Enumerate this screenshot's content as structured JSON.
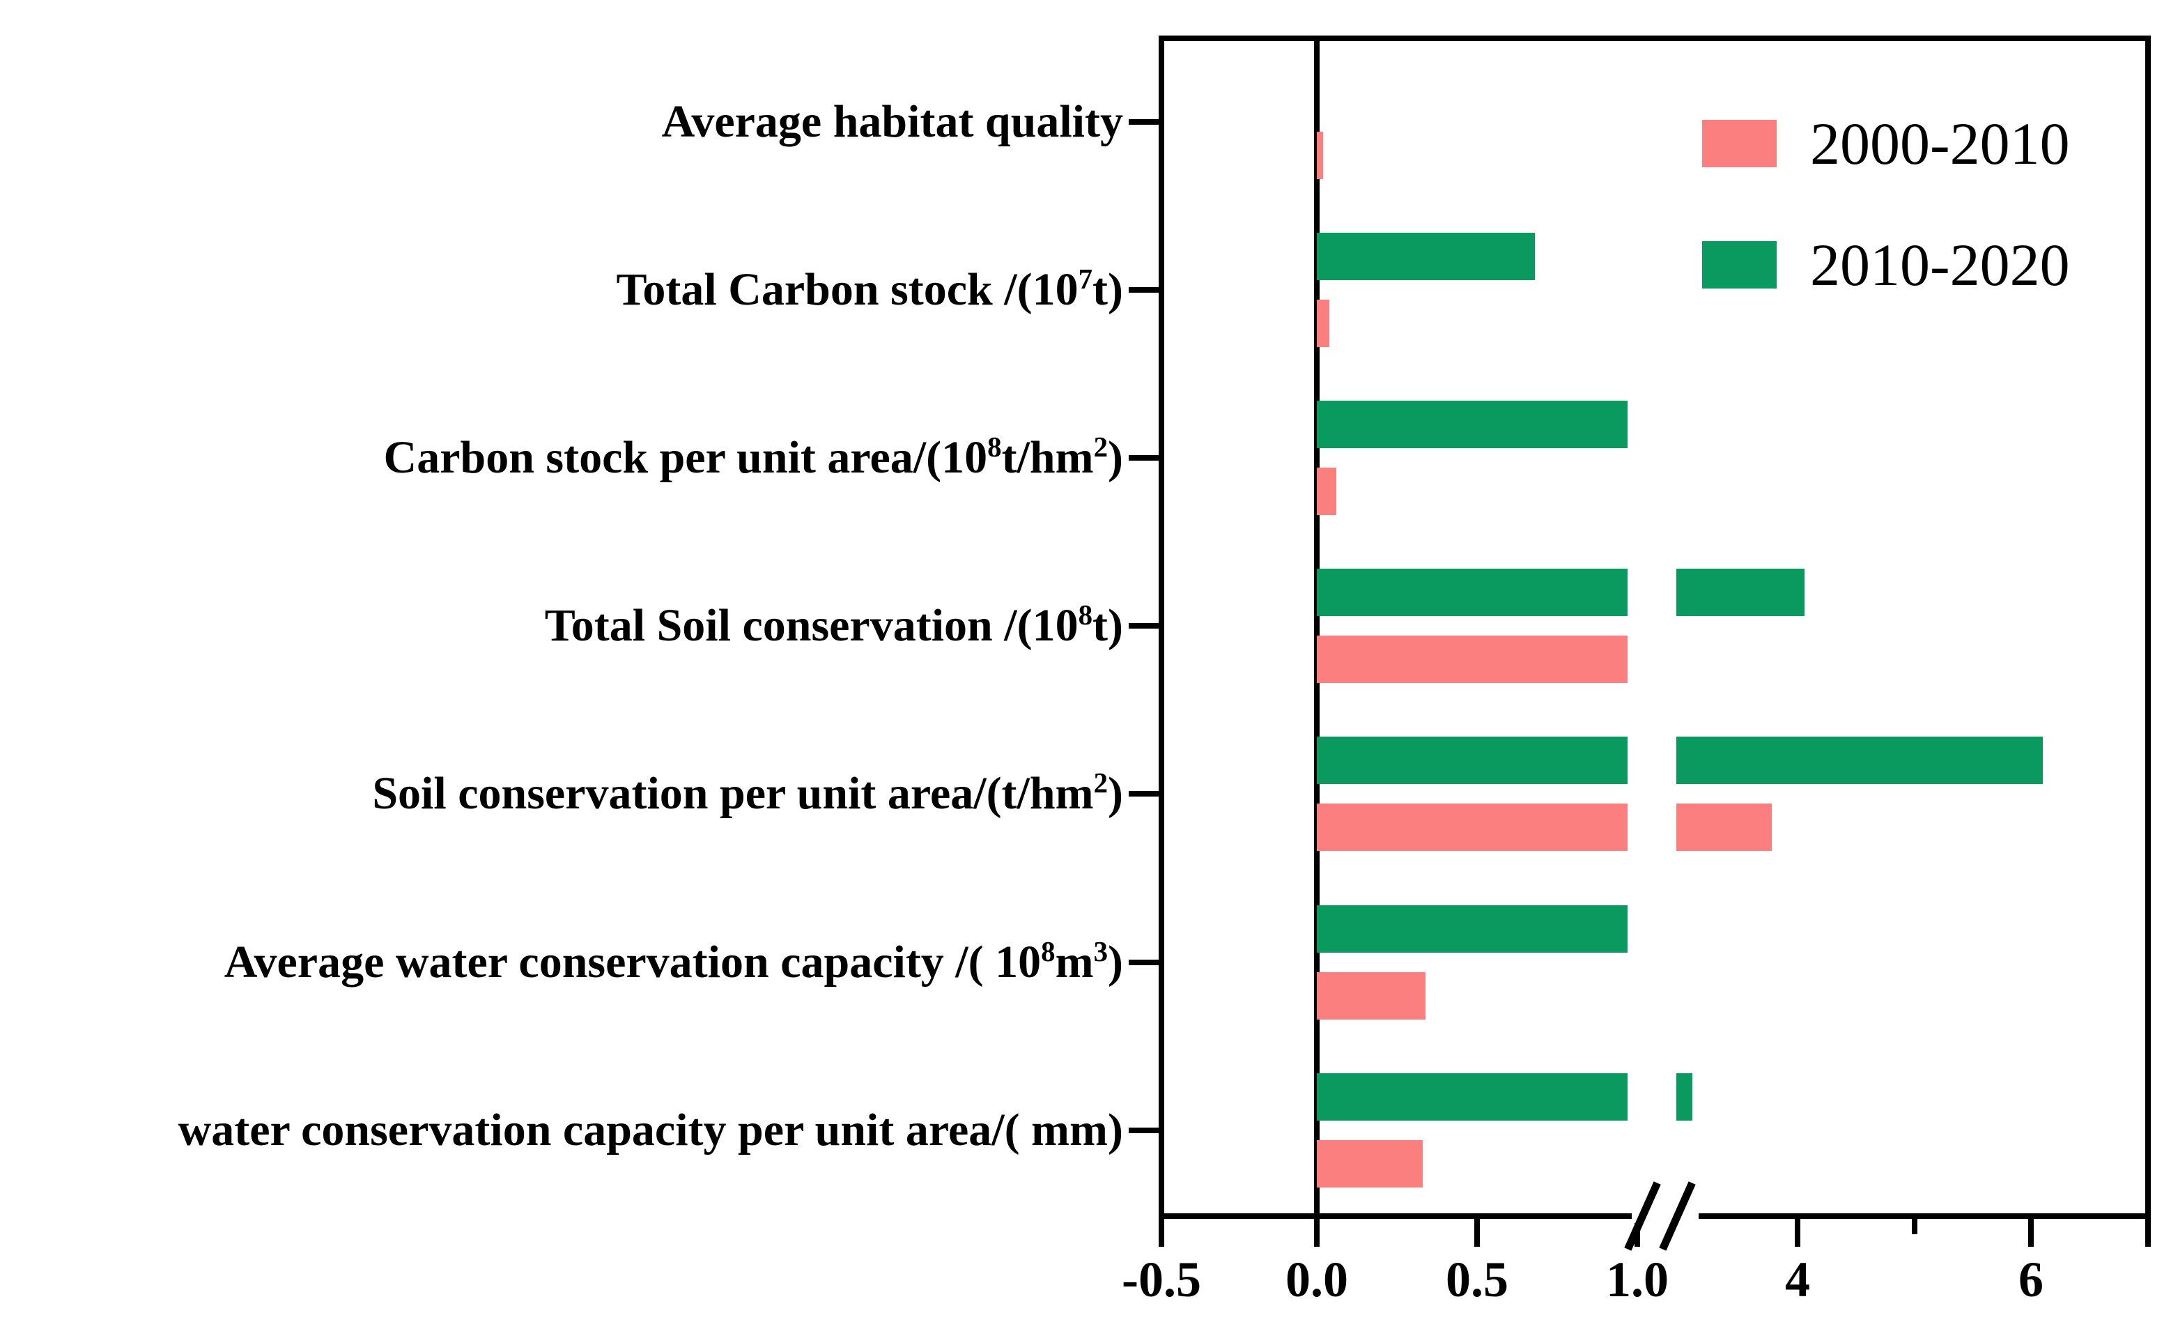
{
  "chart_data": {
    "type": "bar",
    "orientation": "horizontal",
    "title": "",
    "xlabel": "",
    "ylabel": "",
    "categories": [
      "Average habitat quality",
      "Total Carbon stock /(10⁷t)",
      "Carbon stock per unit area/(10⁸t/hm²)",
      "Total Soil conservation /(10⁸t)",
      "Soil conservation per unit area/(t/hm²)",
      "Average water conservation capacity /( 10⁸m³)",
      "water conservation capacity per unit area/( mm)"
    ],
    "series": [
      {
        "name": "2000-2010",
        "color": "#fb7f7f",
        "values": [
          0.02,
          0.04,
          0.06,
          1.0,
          3.78,
          0.34,
          0.33
        ]
      },
      {
        "name": "2010-2020",
        "color": "#0a9a5f",
        "values": [
          0.0,
          0.68,
          1.0,
          4.06,
          6.1,
          1.0,
          3.1
        ]
      }
    ],
    "x_axis": {
      "ticks": [
        {
          "v": -0.5,
          "label": "-0.5",
          "minor": false
        },
        {
          "v": 0.0,
          "label": "0.0",
          "minor": false
        },
        {
          "v": 0.5,
          "label": "0.5",
          "minor": false
        },
        {
          "v": 1.0,
          "label": "1.0",
          "minor": false
        },
        {
          "v": 4.0,
          "label": "4",
          "minor": false
        },
        {
          "v": 5.0,
          "label": "",
          "minor": true
        },
        {
          "v": 6.0,
          "label": "6",
          "minor": false
        },
        {
          "v": 7.0,
          "label": "",
          "minor": false
        }
      ],
      "axis_break_between": [
        1.0,
        3.0
      ],
      "range_left_segment": [
        -0.5,
        1.0
      ],
      "range_right_segment": [
        3.0,
        7.0
      ],
      "grid": false
    },
    "legend": {
      "position": "top-right",
      "entries": [
        "2000-2010",
        "2010-2020"
      ]
    }
  },
  "colors": {
    "bar_pink": "#fb7f7f",
    "bar_green": "#0a9a5f",
    "axis": "#000000",
    "background": "#ffffff"
  }
}
